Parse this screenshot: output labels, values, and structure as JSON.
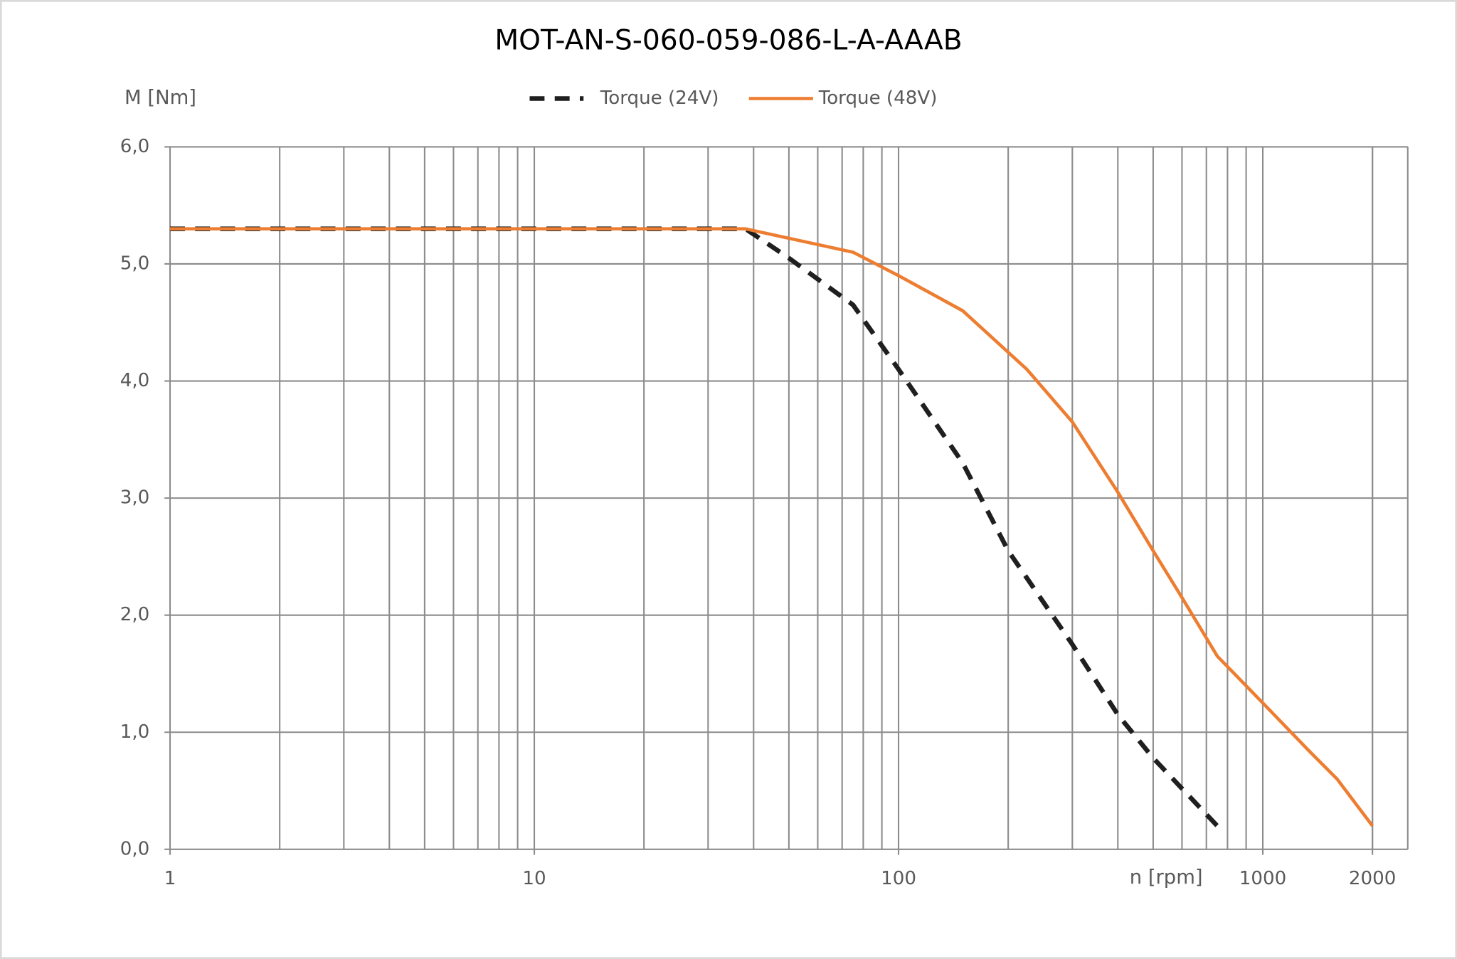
{
  "chart_data": {
    "type": "line",
    "title": "MOT-AN-S-060-059-086-L-A-AAAB",
    "y_label": "M [Nm]",
    "x_label": "n [rpm]",
    "x_scale": "log",
    "minor_grid": true,
    "grid": true,
    "legend": "top",
    "xlim": [
      1,
      2500
    ],
    "xticks": [
      1,
      10,
      100,
      1000,
      2000
    ],
    "ylim": [
      0,
      6
    ],
    "yticks": [
      {
        "value": 0,
        "label": "0,0"
      },
      {
        "value": 1,
        "label": "1,0"
      },
      {
        "value": 2,
        "label": "2,0"
      },
      {
        "value": 3,
        "label": "3,0"
      },
      {
        "value": 4,
        "label": "4,0"
      },
      {
        "value": 5,
        "label": "5,0"
      },
      {
        "value": 6,
        "label": "6,0"
      }
    ],
    "series": [
      {
        "name": "Torque (24V)",
        "color": "#1f1f1f",
        "line_style": "dashed",
        "x": [
          1,
          38,
          50,
          75,
          100,
          150,
          200,
          300,
          400,
          500,
          750
        ],
        "values": [
          5.3,
          5.3,
          5.05,
          4.65,
          4.1,
          3.3,
          2.55,
          1.75,
          1.15,
          0.78,
          0.2
        ]
      },
      {
        "name": "Torque (48V)",
        "color": "#ed7d31",
        "line_style": "solid",
        "x": [
          1,
          38,
          75,
          100,
          150,
          225,
          300,
          400,
          500,
          600,
          750,
          1000,
          1350,
          1600,
          2000
        ],
        "values": [
          5.3,
          5.3,
          5.1,
          4.9,
          4.6,
          4.1,
          3.65,
          3.05,
          2.55,
          2.15,
          1.65,
          1.25,
          0.83,
          0.6,
          0.2
        ]
      }
    ]
  }
}
